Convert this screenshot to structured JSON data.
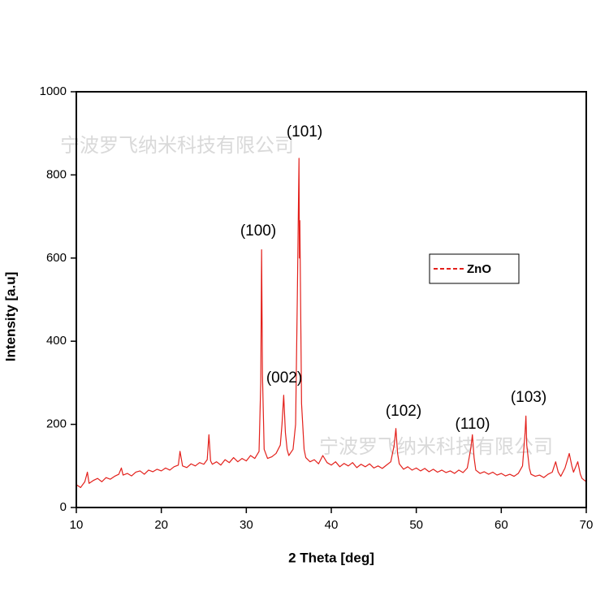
{
  "chart_data": {
    "type": "line",
    "x_label": "2 Theta [deg]",
    "y_label": "Intensity [a.u]",
    "xlim": [
      10,
      70
    ],
    "xticks": [
      10,
      20,
      30,
      40,
      50,
      60,
      70
    ],
    "ylim": [
      0,
      1000
    ],
    "yticks": [
      0,
      200,
      400,
      600,
      800,
      1000
    ],
    "legend_position": "right",
    "annotations": [
      "(100)",
      "(101)",
      "(002)",
      "(102)",
      "(110)",
      "(103)"
    ],
    "watermarks": [
      "宁波罗飞纳米科技有限公司",
      "宁波罗飞纳米科技有限公司"
    ],
    "x": [
      10,
      10.5,
      11,
      11.3,
      11.5,
      12,
      12.5,
      13,
      13.5,
      14,
      14.5,
      15,
      15.3,
      15.5,
      16,
      16.5,
      17,
      17.5,
      18,
      18.5,
      19,
      19.5,
      20,
      20.5,
      21,
      21.5,
      22,
      22.2,
      22.5,
      23,
      23.5,
      24,
      24.5,
      25,
      25.4,
      25.6,
      25.8,
      26,
      26.5,
      27,
      27.5,
      28,
      28.5,
      29,
      29.5,
      30,
      30.5,
      31,
      31.5,
      31.7,
      31.8,
      31.9,
      32.1,
      32.5,
      33,
      33.5,
      34,
      34.2,
      34.4,
      34.6,
      34.8,
      35,
      35.5,
      35.8,
      36,
      36.2,
      36.25,
      36.3,
      36.5,
      36.8,
      37,
      37.5,
      38,
      38.5,
      39,
      39.5,
      40,
      40.5,
      41,
      41.5,
      42,
      42.5,
      43,
      43.5,
      44,
      44.5,
      45,
      45.5,
      46,
      46.5,
      47,
      47.4,
      47.6,
      47.8,
      48,
      48.5,
      49,
      49.5,
      50,
      50.5,
      51,
      51.5,
      52,
      52.5,
      53,
      53.5,
      54,
      54.5,
      55,
      55.5,
      56,
      56.4,
      56.6,
      56.8,
      57,
      57.5,
      58,
      58.5,
      59,
      59.5,
      60,
      60.5,
      61,
      61.5,
      62,
      62.5,
      62.8,
      62.9,
      63,
      63.3,
      63.5,
      64,
      64.5,
      65,
      65.5,
      66,
      66.4,
      66.7,
      67,
      67.5,
      68,
      68.3,
      68.5,
      69,
      69.3,
      69.5,
      70
    ],
    "series": [
      {
        "name": "ZnO",
        "color": "#e3201b",
        "values": [
          55,
          48,
          62,
          85,
          58,
          65,
          70,
          62,
          72,
          68,
          75,
          80,
          95,
          78,
          82,
          76,
          85,
          88,
          80,
          90,
          86,
          92,
          88,
          95,
          90,
          98,
          102,
          135,
          100,
          96,
          105,
          100,
          108,
          104,
          115,
          175,
          112,
          104,
          110,
          102,
          115,
          108,
          120,
          110,
          118,
          112,
          125,
          118,
          135,
          300,
          620,
          320,
          140,
          118,
          122,
          130,
          150,
          200,
          270,
          180,
          140,
          125,
          140,
          200,
          500,
          840,
          600,
          690,
          250,
          140,
          120,
          110,
          115,
          105,
          125,
          108,
          102,
          110,
          98,
          106,
          100,
          108,
          96,
          104,
          98,
          105,
          95,
          100,
          94,
          102,
          110,
          150,
          190,
          130,
          105,
          92,
          98,
          90,
          95,
          88,
          94,
          86,
          92,
          85,
          90,
          84,
          88,
          82,
          90,
          84,
          95,
          140,
          175,
          120,
          90,
          82,
          86,
          80,
          85,
          78,
          82,
          76,
          80,
          75,
          82,
          100,
          180,
          220,
          150,
          95,
          80,
          75,
          78,
          72,
          80,
          85,
          110,
          85,
          75,
          95,
          130,
          100,
          85,
          110,
          80,
          70,
          62
        ]
      }
    ]
  }
}
